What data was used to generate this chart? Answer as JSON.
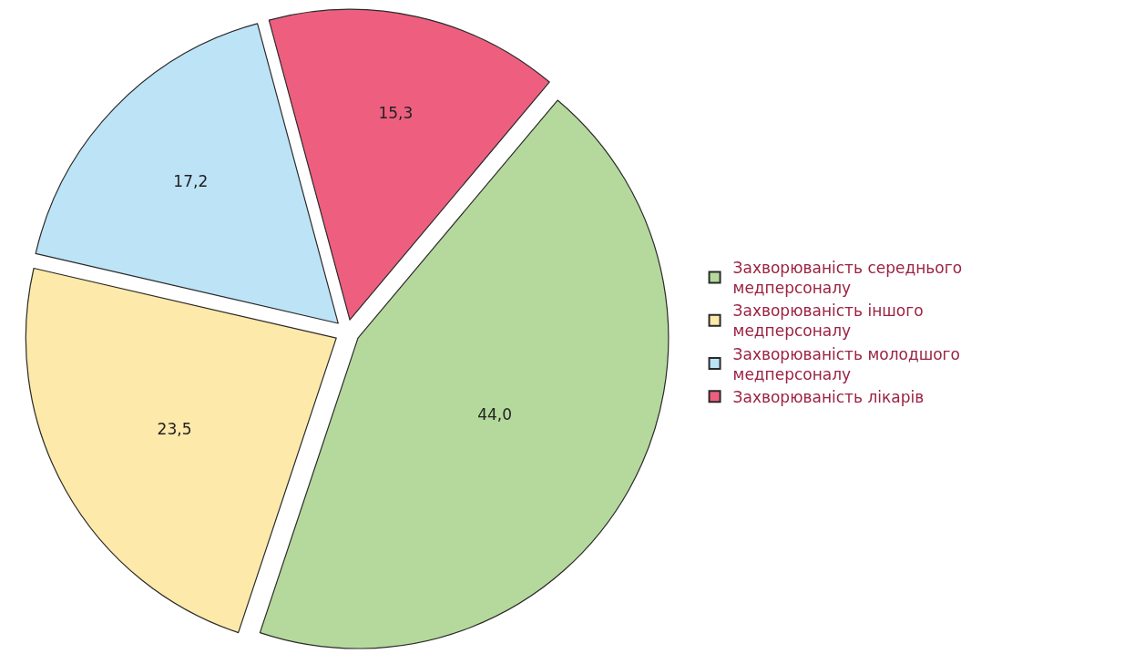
{
  "chart_data": {
    "type": "pie",
    "categories": [
      "Захворюваність середнього медперсоналу",
      "Захворюваність іншого медперсоналу",
      "Захворюваність молодшого медперсоналу",
      "Захворюваність лікарів"
    ],
    "values": [
      44.0,
      23.5,
      17.2,
      15.3
    ],
    "colors": [
      "#b5d99c",
      "#fde9a9",
      "#bde3f7",
      "#ee5f7f"
    ],
    "value_labels": [
      "44,0",
      "23,5",
      "17,2",
      "15,3"
    ],
    "legend": "right"
  }
}
